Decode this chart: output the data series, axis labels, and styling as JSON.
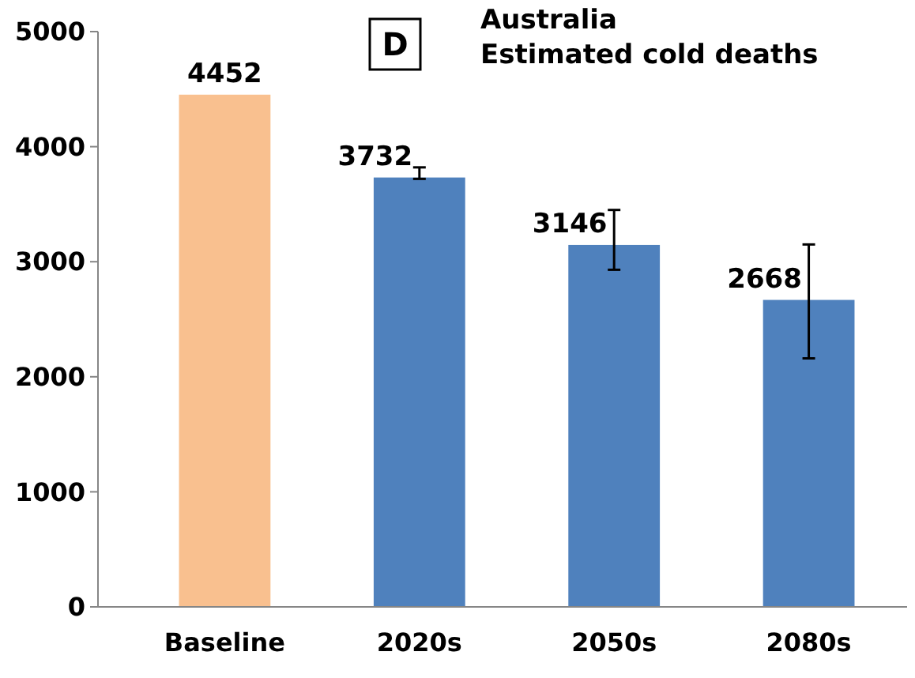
{
  "chart_data": {
    "type": "bar",
    "title": "Australia",
    "subtitle": "Estimated cold deaths",
    "annotations": [
      "D"
    ],
    "categories": [
      "Baseline",
      "2020s",
      "2050s",
      "2080s"
    ],
    "values": [
      4452,
      3732,
      3146,
      2668
    ],
    "colors": [
      "#f9c08f",
      "#4f81bd",
      "#4f81bd",
      "#4f81bd"
    ],
    "errors": [
      null,
      [
        3720,
        3820
      ],
      [
        2930,
        3450
      ],
      [
        2160,
        3150
      ]
    ],
    "data_labels": true,
    "ylim": [
      0,
      5000
    ],
    "yticks": [
      0,
      1000,
      2000,
      3000,
      4000,
      5000
    ],
    "grid": false
  }
}
